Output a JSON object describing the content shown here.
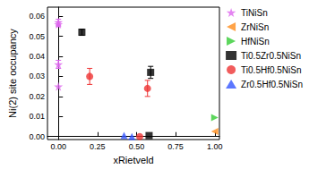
{
  "chart_data": {
    "type": "scatter",
    "x_label": "xRietveld",
    "y_label": "Ni(2) site occupancy",
    "xlim": [
      -0.07,
      1.03
    ],
    "ylim": [
      -0.0015,
      0.0645
    ],
    "xticks": [
      {
        "value": 0,
        "label": "0.00"
      },
      {
        "value": 0.25,
        "label": "0.25"
      },
      {
        "value": 0.5,
        "label": "0.50"
      },
      {
        "value": 0.75,
        "label": "0.75"
      },
      {
        "value": 1,
        "label": "1.00"
      }
    ],
    "yticks": [
      {
        "value": 0,
        "label": "0.00"
      },
      {
        "value": 0.01,
        "label": "0.01"
      },
      {
        "value": 0.02,
        "label": "0.02"
      },
      {
        "value": 0.03,
        "label": "0.03"
      },
      {
        "value": 0.04,
        "label": "0.04"
      },
      {
        "value": 0.05,
        "label": "0.05"
      },
      {
        "value": 0.06,
        "label": "0.06"
      }
    ],
    "grid": false,
    "legend": "right",
    "series": [
      {
        "name": "TiNiSn",
        "color": "#dd66ee",
        "marker": "star",
        "x": [
          0.0,
          0.0,
          0.0,
          0.0
        ],
        "values": [
          0.057,
          0.056,
          0.036,
          0.025
        ],
        "errors": [
          0.0015,
          0.0012,
          0.002,
          null
        ]
      },
      {
        "name": "ZrNiSn",
        "color": "#ff8c1a",
        "marker": "triangle-left",
        "x": [
          1.0
        ],
        "values": [
          0.0025
        ],
        "errors": [
          null
        ]
      },
      {
        "name": "HfNiSn",
        "color": "#33cc33",
        "marker": "triangle-right",
        "x": [
          1.0
        ],
        "values": [
          0.0095
        ],
        "errors": [
          null
        ]
      },
      {
        "name": "Ti0.5Zr0.5NiSn",
        "color": "#000000",
        "marker": "square",
        "x": [
          0.15,
          0.59,
          0.58
        ],
        "values": [
          0.052,
          0.032,
          0.0005
        ],
        "errors": [
          0.0015,
          0.003,
          null
        ]
      },
      {
        "name": "Ti0.5Hf0.5NiSn",
        "color": "#ee3333",
        "marker": "circle",
        "x": [
          0.2,
          0.57,
          0.52
        ],
        "values": [
          0.03,
          0.024,
          0.0
        ],
        "errors": [
          0.004,
          0.004,
          null
        ]
      },
      {
        "name": "Zr0.5Hf0.5NiSn",
        "color": "#3355ff",
        "marker": "triangle",
        "x": [
          0.42,
          0.47
        ],
        "values": [
          0.0005,
          0.0
        ],
        "errors": [
          null,
          null
        ]
      }
    ]
  }
}
